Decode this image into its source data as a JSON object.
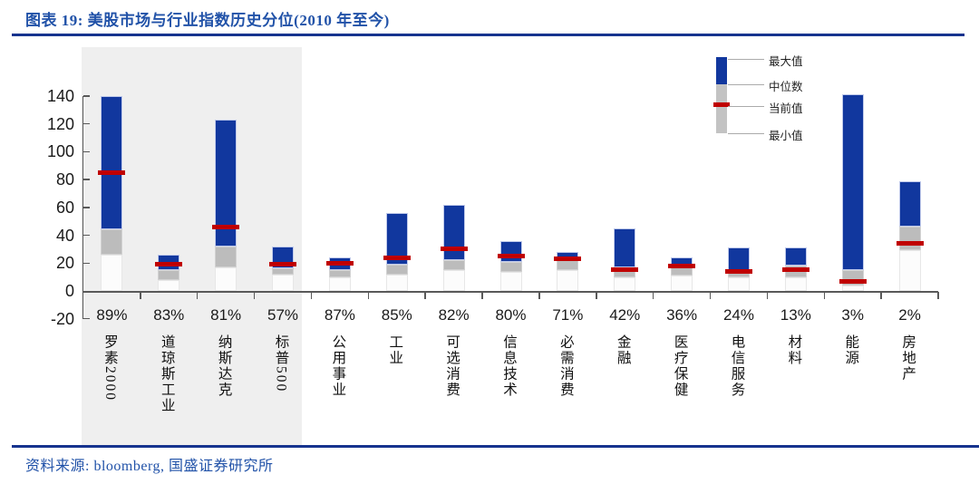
{
  "header": {
    "title": "图表 19: 美股市场与行业指数历史分位(2010 年至今)"
  },
  "footer": {
    "source": "资料来源: bloomberg, 国盛证券研究所"
  },
  "legend": {
    "items": [
      "最大值",
      "中位数",
      "当前值",
      "最小值"
    ]
  },
  "colors": {
    "accent_blue_bar": "#11379e",
    "median_gray": "#bcbcbc",
    "current_red": "#c00000",
    "title_blue": "#2152a8",
    "rule_navy": "#16338e",
    "axis_gray": "#595959",
    "highlight_band": "#efefef"
  },
  "chart_data": {
    "type": "bar",
    "subtype": "floating-range-bars (min/median/max with current-value marker)",
    "categories": [
      "罗素2000",
      "道琼斯工业",
      "纳斯达克",
      "标普500",
      "公用事业",
      "工业",
      "可选消费",
      "信息技术",
      "必需消费",
      "金融",
      "医疗保健",
      "电信服务",
      "材料",
      "能源",
      "房地产"
    ],
    "percentile_labels": [
      "89%",
      "83%",
      "81%",
      "57%",
      "87%",
      "85%",
      "82%",
      "80%",
      "71%",
      "42%",
      "36%",
      "24%",
      "13%",
      "3%",
      "2%"
    ],
    "series": [
      {
        "name": "最大值",
        "values": [
          140,
          26,
          123,
          32,
          24,
          56,
          62,
          36,
          28,
          45,
          24,
          31,
          31,
          141,
          79
        ]
      },
      {
        "name": "中位数",
        "values": [
          44,
          15,
          32,
          16,
          15,
          19,
          22,
          21,
          22,
          17,
          19,
          15,
          18,
          15,
          46
        ]
      },
      {
        "name": "当前值",
        "values": [
          85,
          19,
          46,
          19,
          20,
          24,
          30,
          25,
          23,
          15,
          18,
          14,
          15,
          7,
          34
        ]
      },
      {
        "name": "最小值",
        "values": [
          26,
          8,
          17,
          12,
          10,
          12,
          15,
          14,
          15,
          10,
          11,
          10,
          10,
          4,
          29
        ]
      }
    ],
    "title": "美股市场与行业指数历史分位(2010 年至今)",
    "xlabel": "",
    "ylabel": "",
    "ylim": [
      -20,
      140
    ],
    "yticks": [
      -20,
      0,
      20,
      40,
      60,
      80,
      100,
      120,
      140
    ],
    "grid": "off",
    "legend_position": "top-right",
    "highlighted_categories": [
      "罗素2000",
      "道琼斯工业",
      "纳斯达克",
      "标普500"
    ]
  }
}
